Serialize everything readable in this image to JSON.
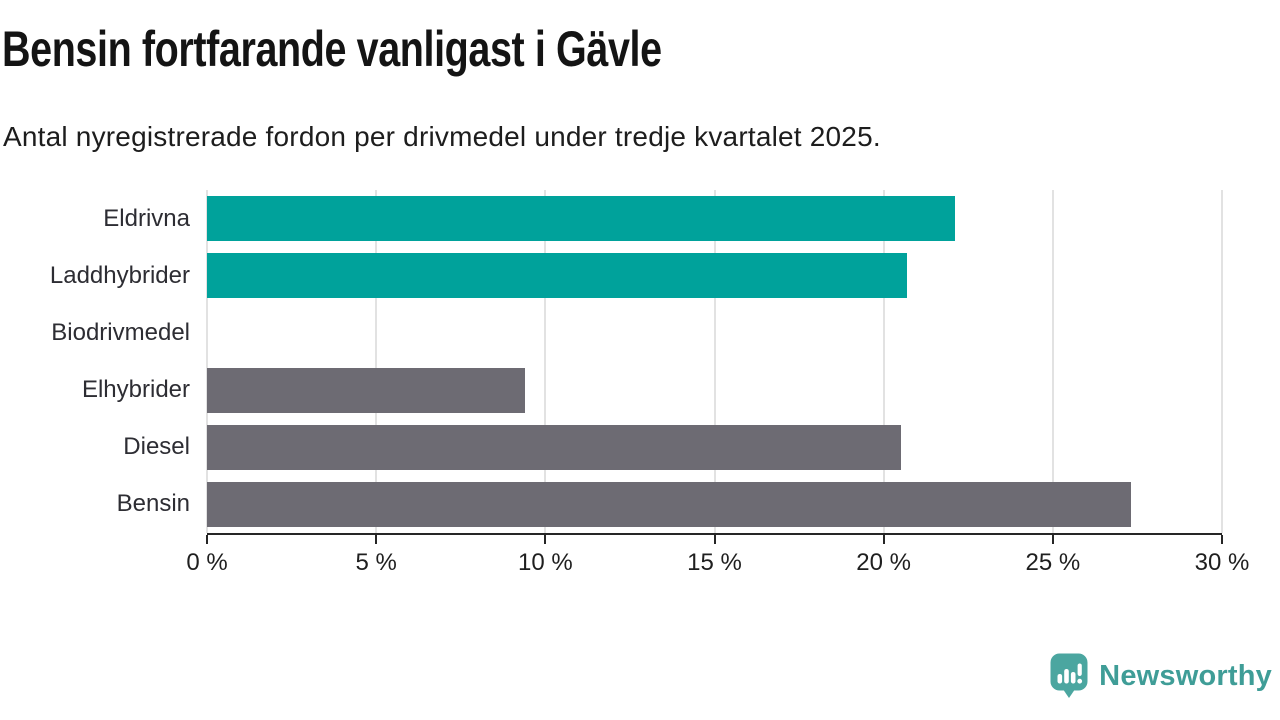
{
  "chart": {
    "title": "Bensin fortfarande vanligast i Gävle",
    "subtitle": "Antal nyregistrerade fordon per drivmedel under tredje kvartalet 2025."
  },
  "chart_data": {
    "type": "bar",
    "orientation": "horizontal",
    "title": "Bensin fortfarande vanligast i Gävle",
    "subtitle": "Antal nyregistrerade fordon per drivmedel under tredje kvartalet 2025.",
    "categories": [
      "Eldrivna",
      "Laddhybrider",
      "Biodrivmedel",
      "Elhybrider",
      "Diesel",
      "Bensin"
    ],
    "values": [
      22.1,
      20.7,
      0,
      9.4,
      20.5,
      27.3
    ],
    "bar_colors": [
      "#00A29B",
      "#00A29B",
      "#00A29B",
      "#6D6B73",
      "#6D6B73",
      "#6D6B73"
    ],
    "highlight_color": "#00A29B",
    "default_color": "#6D6B73",
    "xlabel": "",
    "ylabel": "",
    "xlim": [
      0,
      30
    ],
    "x_ticks": [
      0,
      5,
      10,
      15,
      20,
      25,
      30
    ],
    "x_tick_labels": [
      "0 %",
      "5 %",
      "10 %",
      "15 %",
      "20 %",
      "25 %",
      "30 %"
    ],
    "grid": true,
    "gridline_color": "#E2E2E2",
    "axis_color": "#262626",
    "legend_position": "none"
  },
  "footer": {
    "brand": "Newsworthy",
    "brand_color": "#3F9D97",
    "icon": "newsworthy-speech-bubble-chart-icon",
    "icon_color": "#4BA6A0"
  }
}
